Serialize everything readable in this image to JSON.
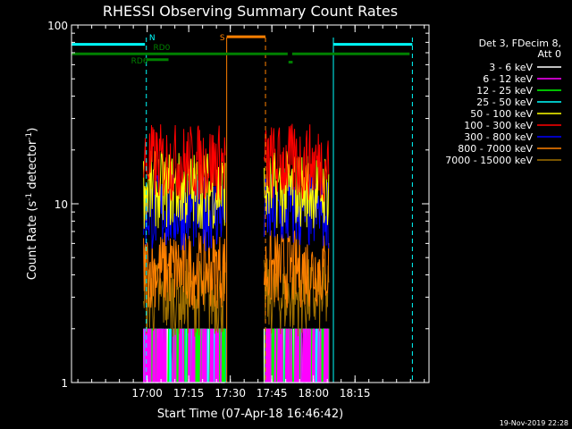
{
  "chart_data": {
    "type": "line",
    "title": "RHESSI Observing Summary Count Rates",
    "xlabel": "Start Time (07-Apr-18 16:46:42)",
    "ylabel": "Count Rate (s",
    "ylabel_sup": "-1",
    "ylabel_tail": " detector",
    "ylabel_sup2": "-1",
    "ylabel_close": ")",
    "y_scale": "log",
    "ylim": [
      1,
      100
    ],
    "xlim_minutes": [
      -14,
      115
    ],
    "x_ticks": [
      {
        "label": "17:00",
        "min": 13.3
      },
      {
        "label": "17:15",
        "min": 28.3
      },
      {
        "label": "17:30",
        "min": 43.3
      },
      {
        "label": "17:45",
        "min": 58.3
      },
      {
        "label": "18:00",
        "min": 73.3
      },
      {
        "label": "18:15",
        "min": 88.3
      }
    ],
    "y_ticks": [
      {
        "label": "1",
        "value": 1
      },
      {
        "label": "10",
        "value": 10
      },
      {
        "label": "100",
        "value": 100
      }
    ],
    "legend_header": [
      "Det 3, FDecim 8,",
      "Att 0"
    ],
    "series": [
      {
        "name": "3 - 6 keV",
        "color": "#ffffff",
        "level": 1.6
      },
      {
        "name": "6 - 12 keV",
        "color": "#ff00ff",
        "level": 1.4
      },
      {
        "name": "12 - 25 keV",
        "color": "#00ff00",
        "level": 1.5
      },
      {
        "name": "25 - 50 keV",
        "color": "#00ffff",
        "level": 1.3
      },
      {
        "name": "50 - 100 keV",
        "color": "#ffff00",
        "level": 12
      },
      {
        "name": "100 - 300 keV",
        "color": "#ff0000",
        "level": 17
      },
      {
        "name": "300 - 800 keV",
        "color": "#0000ff",
        "level": 9
      },
      {
        "name": "800 - 7000 keV",
        "color": "#ff8000",
        "level": 4.3
      },
      {
        "name": "7000 - 15000 keV",
        "color": "#a07000",
        "level": 3.0
      }
    ],
    "data_intervals": [
      {
        "start": 12.0,
        "end": 41.5
      },
      {
        "start": 55.5,
        "end": 79.0
      }
    ],
    "flags": [
      {
        "label": "N",
        "color": "#00ffff",
        "segments": [
          [
            -14,
            12.5
          ],
          [
            80.5,
            109
          ]
        ],
        "level": 78
      },
      {
        "label": "S",
        "color": "#ff8000",
        "segments": [
          [
            42,
            56
          ]
        ],
        "level": 86
      },
      {
        "label": "RD0",
        "color": "#008000",
        "segments": [
          [
            -14,
            108
          ]
        ],
        "level": 69
      },
      {
        "label": "RD6",
        "color": "#008000",
        "segments": [
          [
            13,
            21
          ]
        ],
        "level": 64
      }
    ],
    "vlines": [
      {
        "min": -14,
        "color": "#00ffff",
        "dashed": false
      },
      {
        "min": 13,
        "color": "#00ffff",
        "dashed": true
      },
      {
        "min": 42,
        "color": "#ff8000",
        "dashed": false
      },
      {
        "min": 56,
        "color": "#ff8000",
        "dashed": true
      },
      {
        "min": 80.5,
        "color": "#00ffff",
        "dashed": false
      },
      {
        "min": 109,
        "color": "#00ffff",
        "dashed": true
      }
    ]
  },
  "timestamp": "19-Nov-2019 22:28"
}
